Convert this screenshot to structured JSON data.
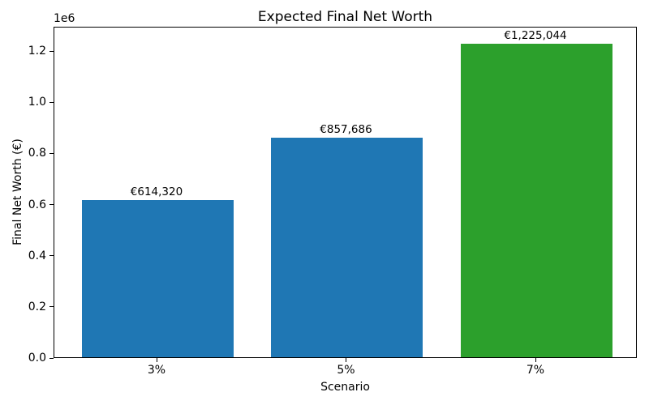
{
  "chart_data": {
    "type": "bar",
    "title": "Expected Final Net Worth",
    "xlabel": "Scenario",
    "ylabel": "Final Net Worth (€)",
    "categories": [
      "3%",
      "5%",
      "7%"
    ],
    "values": [
      614320,
      857686,
      1225044
    ],
    "value_labels": [
      "€614,320",
      "€857,686",
      "€1,225,044"
    ],
    "bar_colors": [
      "#1f77b4",
      "#1f77b4",
      "#2ca02c"
    ],
    "ylim": [
      0,
      1295000
    ],
    "yticks": [
      0,
      200000,
      400000,
      600000,
      800000,
      1000000,
      1200000
    ],
    "ytick_labels": [
      "0.0",
      "0.2",
      "0.4",
      "0.6",
      "0.8",
      "1.0",
      "1.2"
    ],
    "y_offset_text": "1e6",
    "grid": false,
    "legend": null
  }
}
